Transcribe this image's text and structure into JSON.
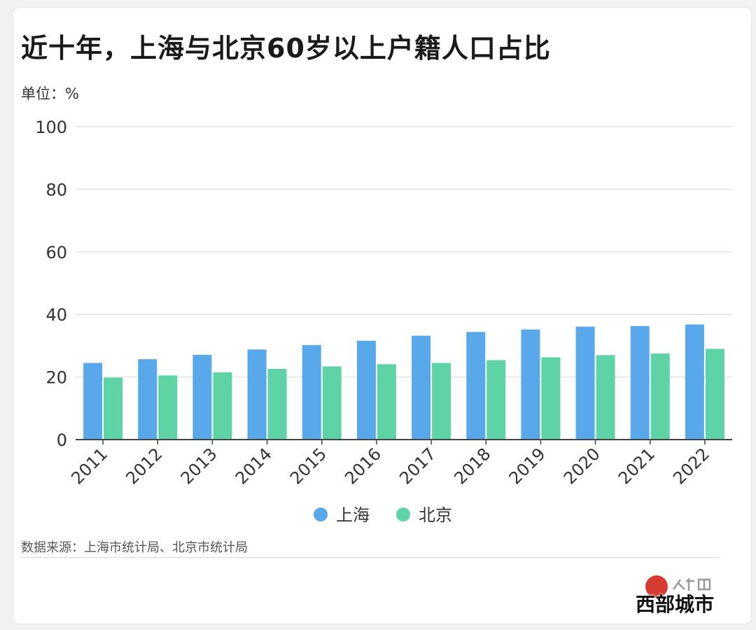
{
  "title": "近十年，上海与北京60岁以上户籍人口占比",
  "unit_label": "单位：%",
  "source": "数据来源：上海市统计局、北京市统计局",
  "watermark": "西部城市",
  "colors": {
    "shanghai": "#5aa8ec",
    "beijing": "#5dd3a6",
    "grid": "#e2e2e2",
    "axis": "#444444",
    "tick_text": "#333333"
  },
  "chart_data": {
    "type": "bar",
    "title": "近十年，上海与北京60岁以上户籍人口占比",
    "ylabel": "单位：%",
    "xlabel": "",
    "categories": [
      "2011",
      "2012",
      "2013",
      "2014",
      "2015",
      "2016",
      "2017",
      "2018",
      "2019",
      "2020",
      "2021",
      "2022"
    ],
    "series": [
      {
        "name": "上海",
        "values": [
          24.5,
          25.7,
          27.1,
          28.8,
          30.2,
          31.6,
          33.2,
          34.4,
          35.2,
          36.1,
          36.3,
          36.8
        ]
      },
      {
        "name": "北京",
        "values": [
          19.8,
          20.5,
          21.5,
          22.6,
          23.4,
          24.1,
          24.5,
          25.4,
          26.3,
          27.0,
          27.5,
          29.0
        ]
      }
    ],
    "ylim": [
      0,
      100
    ],
    "yticks": [
      0,
      20,
      40,
      60,
      80,
      100
    ],
    "grid": true,
    "legend": "bottom-center"
  }
}
